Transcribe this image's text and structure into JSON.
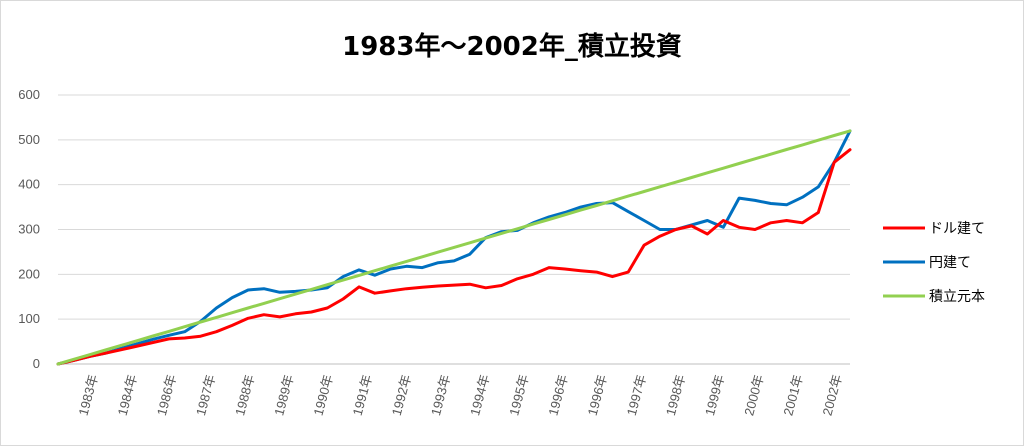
{
  "chart_data": {
    "type": "line",
    "title": "1983年～2002年_積立投資",
    "xlabel": "",
    "ylabel": "",
    "ylim": [
      0,
      600
    ],
    "yticks": [
      0,
      100,
      200,
      300,
      400,
      500,
      600
    ],
    "x_tick_labels": [
      "1983年",
      "1984年",
      "1986年",
      "1987年",
      "1988年",
      "1989年",
      "1990年",
      "1991年",
      "1992年",
      "1993年",
      "1994年",
      "1995年",
      "1996年",
      "1996年",
      "1997年",
      "1998年",
      "1999年",
      "2000年",
      "2001年",
      "2002年"
    ],
    "grid": true,
    "legend_position": "right",
    "x": [
      0,
      2,
      4,
      6,
      8,
      10,
      12,
      14,
      16,
      18,
      20,
      22,
      24,
      26,
      28,
      30,
      32,
      34,
      36,
      38,
      40,
      42,
      44,
      46,
      48,
      50,
      52,
      54,
      56,
      58,
      60,
      62,
      64,
      66,
      68,
      70,
      72,
      74,
      76,
      78,
      80,
      82,
      84,
      86,
      88,
      90,
      92,
      94,
      96,
      98,
      100
    ],
    "series": [
      {
        "name": "ドル建て",
        "color": "#ff0000",
        "values": [
          0,
          8,
          17,
          24,
          32,
          40,
          48,
          56,
          58,
          62,
          72,
          86,
          102,
          110,
          105,
          112,
          116,
          125,
          145,
          172,
          158,
          163,
          168,
          171,
          174,
          176,
          178,
          170,
          175,
          190,
          200,
          215,
          212,
          208,
          205,
          195,
          205,
          265,
          285,
          300,
          308,
          290,
          320,
          305,
          300,
          315,
          320,
          315,
          338,
          450,
          478
        ]
      },
      {
        "name": "円建て",
        "color": "#0070c0",
        "values": [
          0,
          8,
          17,
          24,
          35,
          45,
          55,
          64,
          72,
          95,
          125,
          148,
          165,
          168,
          160,
          162,
          165,
          170,
          195,
          210,
          198,
          212,
          218,
          215,
          226,
          230,
          245,
          282,
          295,
          298,
          315,
          328,
          338,
          350,
          358,
          360,
          340,
          320,
          300,
          300,
          310,
          320,
          305,
          370,
          365,
          358,
          355,
          372,
          395,
          450,
          520
        ]
      },
      {
        "name": "積立元本",
        "color": "#92d050",
        "values": [
          0,
          10.4,
          20.8,
          31.2,
          41.6,
          52,
          62.4,
          72.8,
          83.2,
          93.6,
          104,
          114.4,
          124.8,
          135.2,
          145.6,
          156,
          166.4,
          176.8,
          187.2,
          197.6,
          208,
          218.4,
          228.8,
          239.2,
          249.6,
          260,
          270.4,
          280.8,
          291.2,
          301.6,
          312,
          322.4,
          332.8,
          343.2,
          353.6,
          364,
          374.4,
          384.8,
          395.2,
          405.6,
          416,
          426.4,
          436.8,
          447.2,
          457.6,
          468,
          478.4,
          488.8,
          499.2,
          509.6,
          520
        ]
      }
    ]
  }
}
